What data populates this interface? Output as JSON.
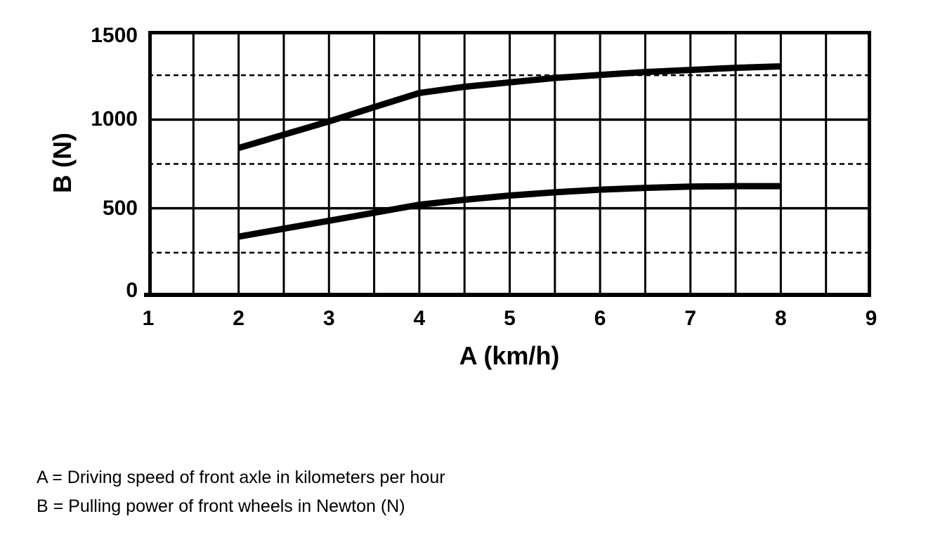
{
  "figure": {
    "background": "#ffffff",
    "ink": "#000000"
  },
  "chart_data": {
    "type": "line",
    "title": "",
    "xlabel": "A (km/h)",
    "ylabel": "B (N)",
    "xlim": [
      1,
      9
    ],
    "ylim": [
      0,
      1500
    ],
    "xticks": [
      1,
      2,
      3,
      4,
      5,
      6,
      7,
      8,
      9
    ],
    "yticks": [
      0,
      500,
      1000,
      1500
    ],
    "x_grid_step": 0.5,
    "y_grid_step": 250,
    "grid": "on",
    "legend_position": "none",
    "line_color": "#000000",
    "x": [
      2,
      2.5,
      3,
      3.5,
      4,
      4.5,
      5,
      5.5,
      6,
      6.5,
      7,
      7.5,
      8
    ],
    "series": [
      {
        "name": "upper curve",
        "values": [
          840,
          915,
          990,
          1070,
          1150,
          1185,
          1210,
          1235,
          1252,
          1268,
          1280,
          1292,
          1300
        ]
      },
      {
        "name": "lower curve",
        "values": [
          340,
          385,
          430,
          475,
          520,
          548,
          572,
          590,
          605,
          615,
          622,
          625,
          625
        ]
      }
    ]
  },
  "caption": {
    "line_a": "A = Driving speed of front axle in kilometers per hour",
    "line_b": "B = Pulling power of front wheels in Newton (N)"
  }
}
